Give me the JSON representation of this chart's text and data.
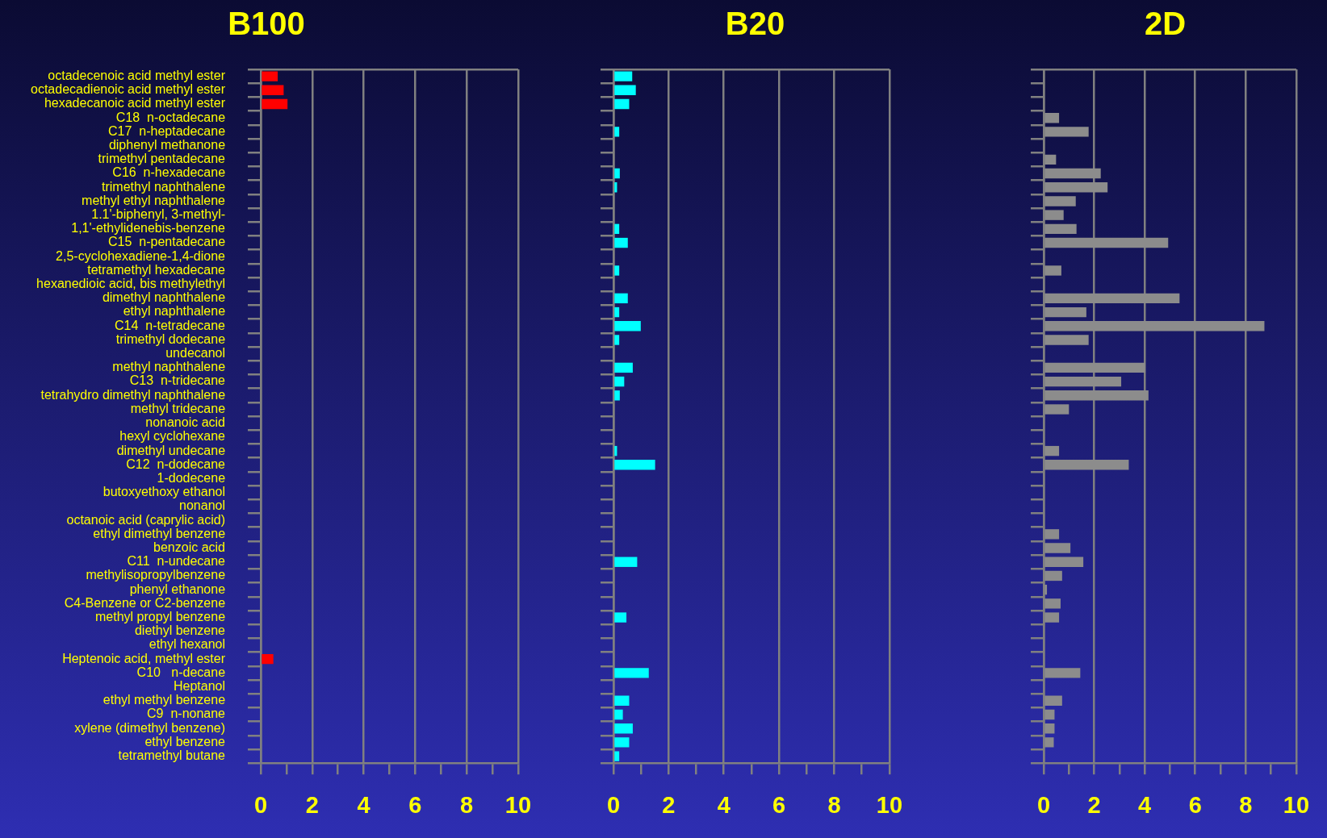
{
  "chart_data": [
    {
      "type": "bar",
      "orientation": "horizontal",
      "title": "B100",
      "categories": [
        "octadecenoic acid methyl ester",
        "octadecadienoic acid methyl ester",
        "hexadecanoic acid methyl ester",
        "C18  n-octadecane",
        "C17  n-heptadecane",
        "diphenyl methanone",
        "trimethyl pentadecane",
        "C16  n-hexadecane",
        "trimethyl naphthalene",
        "methyl ethyl naphthalene",
        "1.1'-biphenyl, 3-methyl-",
        "1,1'-ethylidenebis-benzene",
        "C15  n-pentadecane",
        "2,5-cyclohexadiene-1,4-dione",
        "tetramethyl hexadecane",
        "hexanedioic acid, bis methylethyl",
        "dimethyl naphthalene",
        "ethyl naphthalene",
        "C14  n-tetradecane",
        "trimethyl dodecane",
        "undecanol",
        "methyl naphthalene",
        "C13  n-tridecane",
        "tetrahydro dimethyl naphthalene",
        "methyl tridecane",
        "nonanoic acid",
        "hexyl cyclohexane",
        "dimethyl undecane",
        "C12  n-dodecane",
        "1-dodecene",
        "butoxyethoxy ethanol",
        "nonanol",
        "octanoic acid (caprylic acid)",
        "ethyl dimethyl benzene",
        "benzoic acid",
        "C11  n-undecane",
        "methylisopropylbenzene",
        "phenyl ethanone",
        "C4-Benzene or C2-benzene",
        "methyl propyl benzene",
        "diethyl benzene",
        "ethyl hexanol",
        "Heptenoic acid, methyl ester",
        "C10   n-decane",
        "Heptanol",
        "ethyl methyl benzene",
        "C9  n-nonane",
        "xylene (dimethyl benzene)",
        "ethyl benzene",
        "tetramethyl butane"
      ],
      "color": "#ff0000",
      "values": [
        0.66,
        0.89,
        1.04,
        null,
        null,
        null,
        null,
        null,
        null,
        null,
        null,
        null,
        null,
        null,
        null,
        null,
        null,
        null,
        null,
        null,
        null,
        null,
        null,
        null,
        null,
        null,
        null,
        null,
        null,
        null,
        null,
        null,
        null,
        null,
        null,
        null,
        null,
        null,
        null,
        null,
        null,
        null,
        0.49,
        null,
        null,
        null,
        null,
        null,
        null,
        null
      ],
      "xlim": [
        0,
        10
      ],
      "xticks": [
        0,
        {
          "value": 1,
          "label": null
        },
        2,
        {
          "value": 3,
          "label": null
        },
        4,
        {
          "value": 5,
          "label": null
        },
        6,
        {
          "value": 7,
          "label": null
        },
        8,
        {
          "value": 9,
          "label": null
        },
        10
      ],
      "grid": "x"
    },
    {
      "type": "bar",
      "orientation": "horizontal",
      "title": "B20",
      "categories": [
        null,
        null,
        null,
        null,
        null,
        null,
        null,
        null,
        null,
        null,
        null,
        null,
        null,
        null,
        null,
        null,
        null,
        null,
        null,
        null,
        null,
        null,
        null,
        null,
        null,
        null,
        null,
        null,
        null,
        null,
        null,
        null,
        null,
        null,
        null,
        null,
        null,
        null,
        null,
        null,
        null,
        null,
        null,
        null,
        null,
        null,
        null,
        null,
        null,
        null
      ],
      "color": "#00ffff",
      "values": [
        0.68,
        0.81,
        0.57,
        null,
        0.21,
        null,
        null,
        0.23,
        0.13,
        null,
        null,
        0.21,
        0.52,
        null,
        0.21,
        null,
        0.52,
        0.21,
        0.99,
        0.21,
        null,
        0.7,
        0.39,
        0.23,
        null,
        null,
        null,
        0.13,
        1.51,
        null,
        null,
        null,
        null,
        null,
        null,
        0.86,
        null,
        null,
        null,
        0.47,
        null,
        null,
        null,
        1.28,
        null,
        0.57,
        0.34,
        0.7,
        0.57,
        0.21
      ],
      "xlim": [
        0,
        10
      ],
      "xticks": [
        0,
        {
          "value": 1,
          "label": null
        },
        2,
        {
          "value": 3,
          "label": null
        },
        4,
        {
          "value": 5,
          "label": null
        },
        6,
        {
          "value": 7,
          "label": null
        },
        8,
        {
          "value": 9,
          "label": null
        },
        10
      ],
      "grid": "x",
      "tick_labels": "x"
    },
    {
      "type": "bar",
      "orientation": "horizontal",
      "title": "2D",
      "categories": [
        null,
        null,
        null,
        null,
        null,
        null,
        null,
        null,
        null,
        null,
        null,
        null,
        null,
        null,
        null,
        null,
        null,
        null,
        null,
        null,
        null,
        null,
        null,
        null,
        null,
        null,
        null,
        null,
        null,
        null,
        null,
        null,
        null,
        null,
        null,
        null,
        null,
        null,
        null,
        null,
        null,
        null,
        null,
        null,
        null,
        null,
        null,
        null,
        null,
        null
      ],
      "color": "#8c8c8c",
      "values": [
        null,
        null,
        null,
        0.61,
        1.78,
        null,
        0.49,
        2.26,
        2.53,
        1.27,
        0.79,
        1.3,
        4.93,
        null,
        0.7,
        null,
        5.38,
        1.69,
        8.74,
        1.78,
        null,
        4.02,
        3.07,
        4.15,
        1.0,
        null,
        null,
        0.61,
        3.37,
        null,
        null,
        null,
        null,
        0.61,
        1.06,
        1.57,
        0.73,
        0.13,
        0.67,
        0.61,
        null,
        null,
        null,
        1.45,
        null,
        0.73,
        0.43,
        0.43,
        0.4,
        null
      ],
      "xlim": [
        0,
        10
      ],
      "xticks": [
        0,
        {
          "value": 1,
          "label": null
        },
        2,
        {
          "value": 3,
          "label": null
        },
        4,
        {
          "value": 5,
          "label": null
        },
        6,
        {
          "value": 7,
          "label": null
        },
        8,
        {
          "value": 9,
          "label": null
        },
        10
      ],
      "grid": "x",
      "tick_labels": "x"
    }
  ]
}
